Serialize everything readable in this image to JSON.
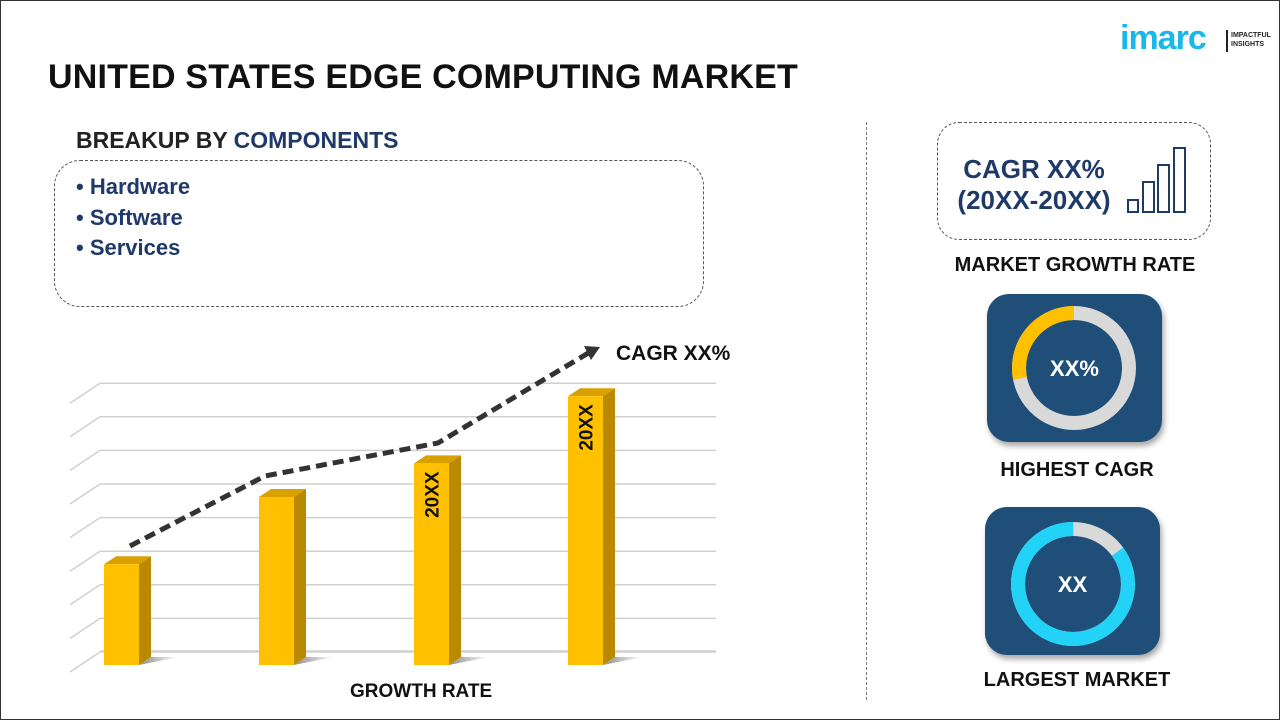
{
  "header": {
    "title": "UNITED STATES EDGE COMPUTING MARKET",
    "logo": {
      "word": "imarc",
      "tagline_1": "IMPACTFUL",
      "tagline_2": "INSIGHTS"
    }
  },
  "segments": {
    "heading_prefix": "BREAKUP BY",
    "heading_highlight": "COMPONENTS",
    "items": [
      "• Hardware",
      "• Software",
      "• Services"
    ]
  },
  "chart_data": {
    "type": "bar",
    "categories": [
      "",
      "",
      "",
      ""
    ],
    "values": [
      3,
      5,
      6,
      8
    ],
    "bar_labels": [
      "",
      "",
      "20XX",
      "20XX"
    ],
    "trend_annotation": "CAGR XX%",
    "xlabel": "GROWTH RATE",
    "ylabel": "",
    "ylim": [
      0,
      8.5
    ],
    "grid": true,
    "colors": {
      "bar": "#ffc000",
      "bar_side": "#b98900",
      "trend": "#333333"
    }
  },
  "kpis": {
    "market_growth": {
      "line1": "CAGR XX%",
      "line2": "(20XX-20XX)",
      "caption": "MARKET GROWTH RATE"
    },
    "highest_cagr": {
      "value": "XX%",
      "caption": "HIGHEST CAGR",
      "fill_fraction": 0.28,
      "fill_color": "#ffc000"
    },
    "largest_market": {
      "value": "XX",
      "caption": "LARGEST MARKET",
      "fill_fraction": 0.85,
      "fill_color": "#22d3f7"
    }
  }
}
